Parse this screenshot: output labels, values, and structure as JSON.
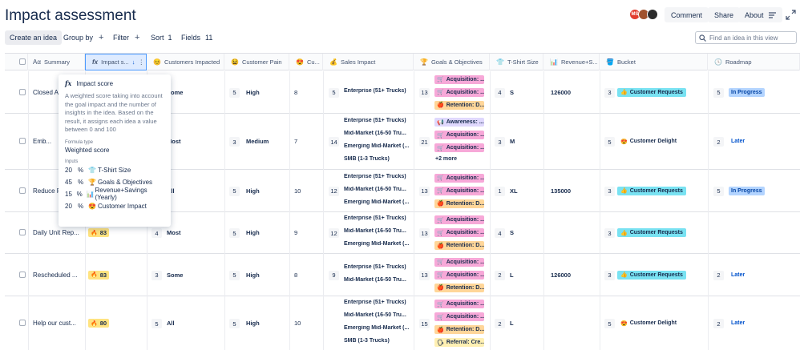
{
  "title": "Impact assessment",
  "header": {
    "avatar_initials": "MS",
    "comment": "Comment",
    "share": "Share",
    "about": "About"
  },
  "toolbar": {
    "create": "Create an idea",
    "group_by": "Group by",
    "filter": "Filter",
    "sort": "Sort",
    "sort_count": "1",
    "fields": "Fields",
    "fields_count": "11",
    "search_placeholder": "Find an idea in this view"
  },
  "columns": {
    "summary": "Summary",
    "impact": "Impact s...",
    "customers": "Customers Impacted",
    "pain": "Customer Pain",
    "cu": "Cu...",
    "sales": "Sales Impact",
    "goals": "Goals & Objectives",
    "tshirt": "T-Shirt Size",
    "revenue": "Revenue+S...",
    "bucket": "Bucket",
    "roadmap": "Roadmap"
  },
  "rows": [
    {
      "summary": "Closed Ac...",
      "score": "",
      "customers": "",
      "cust_label": "Some",
      "pain": "5",
      "pain_label": "High",
      "cu": "8",
      "sales_n": "5",
      "sales": [
        "Enterprise (51+ Trucks)"
      ],
      "goals_n": "13",
      "goals": [
        {
          "t": "acq",
          "l": "Acquisition: ..."
        },
        {
          "t": "acq",
          "l": "Acquisition: ..."
        },
        {
          "t": "ret",
          "l": "Retention: D..."
        }
      ],
      "goals_more": "",
      "ts_n": "4",
      "ts": "S",
      "revenue": "126000",
      "bucket_n": "3",
      "bucket": "Customer Requests",
      "bucket_t": "req",
      "road_n": "5",
      "road": "In Progress",
      "road_t": "prog"
    },
    {
      "summary": "Emb...",
      "score": "",
      "customers": "",
      "cust_label": "Most",
      "pain": "3",
      "pain_label": "Medium",
      "cu": "7",
      "sales_n": "14",
      "sales": [
        "Enterprise (51+ Trucks)",
        "Mid-Market (16-50 Tru...",
        "Emerging Mid-Market (...",
        "SMB (1-3 Trucks)"
      ],
      "goals_n": "21",
      "goals": [
        {
          "t": "awa",
          "l": "Awareness: ..."
        },
        {
          "t": "acq",
          "l": "Acquisition: ..."
        },
        {
          "t": "acq",
          "l": "Acquisition: ..."
        }
      ],
      "goals_more": "+2 more",
      "ts_n": "3",
      "ts": "M",
      "revenue": "",
      "bucket_n": "5",
      "bucket": "Customer Delight",
      "bucket_t": "del",
      "road_n": "2",
      "road": "Later",
      "road_t": "later"
    },
    {
      "summary": "Reduce P...",
      "score": "",
      "customers": "",
      "cust_label": "All",
      "pain": "5",
      "pain_label": "High",
      "cu": "10",
      "sales_n": "12",
      "sales": [
        "Enterprise (51+ Trucks)",
        "Mid-Market (16-50 Tru...",
        "Emerging Mid-Market (..."
      ],
      "goals_n": "13",
      "goals": [
        {
          "t": "acq",
          "l": "Acquisition: ..."
        },
        {
          "t": "acq",
          "l": "Acquisition: ..."
        },
        {
          "t": "ret",
          "l": "Retention: D..."
        }
      ],
      "goals_more": "",
      "ts_n": "1",
      "ts": "XL",
      "revenue": "135000",
      "bucket_n": "3",
      "bucket": "Customer Requests",
      "bucket_t": "req",
      "road_n": "5",
      "road": "In Progress",
      "road_t": "prog"
    },
    {
      "summary": "Daily Unit Rep...",
      "score": "83",
      "customers": "4",
      "cust_label": "Most",
      "pain": "5",
      "pain_label": "High",
      "cu": "9",
      "sales_n": "12",
      "sales": [
        "Enterprise (51+ Trucks)",
        "Mid-Market (16-50 Tru...",
        "Emerging Mid-Market (..."
      ],
      "goals_n": "13",
      "goals": [
        {
          "t": "acq",
          "l": "Acquisition: ..."
        },
        {
          "t": "acq",
          "l": "Acquisition: ..."
        },
        {
          "t": "ret",
          "l": "Retention: D..."
        }
      ],
      "goals_more": "",
      "ts_n": "4",
      "ts": "S",
      "revenue": "",
      "bucket_n": "3",
      "bucket": "Customer Requests",
      "bucket_t": "req",
      "road_n": "",
      "road": "",
      "road_t": ""
    },
    {
      "summary": "Rescheduled ...",
      "score": "83",
      "customers": "3",
      "cust_label": "Some",
      "pain": "5",
      "pain_label": "High",
      "cu": "8",
      "sales_n": "9",
      "sales": [
        "Enterprise (51+ Trucks)",
        "Mid-Market (16-50 Tru..."
      ],
      "goals_n": "13",
      "goals": [
        {
          "t": "acq",
          "l": "Acquisition: ..."
        },
        {
          "t": "acq",
          "l": "Acquisition: ..."
        },
        {
          "t": "ret",
          "l": "Retention: D..."
        }
      ],
      "goals_more": "",
      "ts_n": "2",
      "ts": "L",
      "revenue": "126000",
      "bucket_n": "3",
      "bucket": "Customer Requests",
      "bucket_t": "req",
      "road_n": "2",
      "road": "Later",
      "road_t": "later"
    },
    {
      "summary": "Help our cust...",
      "score": "80",
      "customers": "5",
      "cust_label": "All",
      "pain": "5",
      "pain_label": "High",
      "cu": "10",
      "sales_n": "",
      "sales": [
        "Enterprise (51+ Trucks)",
        "Mid-Market (16-50 Tru...",
        "Emerging Mid-Market (...",
        "SMB (1-3 Trucks)"
      ],
      "goals_n": "15",
      "goals": [
        {
          "t": "acq",
          "l": "Acquisition: ..."
        },
        {
          "t": "acq",
          "l": "Acquisition: ..."
        },
        {
          "t": "ret",
          "l": "Retention: D..."
        },
        {
          "t": "ref",
          "l": "Referral: Cre..."
        }
      ],
      "goals_more": "",
      "ts_n": "2",
      "ts": "L",
      "revenue": "",
      "bucket_n": "5",
      "bucket": "Customer Delight",
      "bucket_t": "del",
      "road_n": "2",
      "road": "Later",
      "road_t": "later"
    }
  ],
  "popup": {
    "title": "Impact score",
    "desc": "A weighted score taking into account the goal impact and the number of insights in the idea. Based on the result, it assigns each idea a value between 0 and 100",
    "formula_label": "Formula type",
    "formula": "Weighted score",
    "inputs_label": "Inputs",
    "inputs": [
      {
        "n": "20",
        "l": "T-Shirt Size",
        "i": "👕"
      },
      {
        "n": "45",
        "l": "Goals & Objectives",
        "i": "🏆"
      },
      {
        "n": "15",
        "l": "Revenue+Savings (Yearly)",
        "i": "📊"
      },
      {
        "n": "20",
        "l": "Customer Impact",
        "i": "😍"
      }
    ]
  }
}
